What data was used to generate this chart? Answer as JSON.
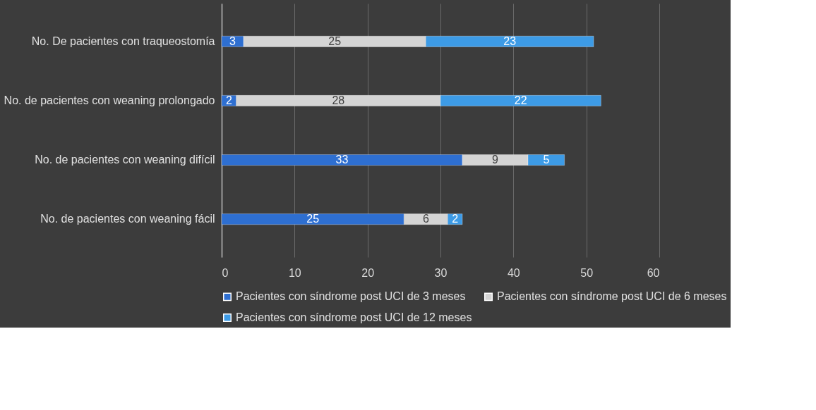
{
  "chart_data": {
    "type": "bar",
    "orientation": "horizontal",
    "stacked": true,
    "categories": [
      "No. De pacientes con traqueostomía",
      "No. de pacientes con weaning prolongado",
      "No. de pacientes con weaning difícil",
      "No. de pacientes con weaning fácil"
    ],
    "series": [
      {
        "name": "Pacientes con síndrome post UCI de 3 meses",
        "color": "#2e6fd1",
        "values": [
          3,
          2,
          33,
          25
        ]
      },
      {
        "name": "Pacientes con síndrome post UCI de 6 meses",
        "color": "#d4d4d4",
        "values": [
          25,
          28,
          9,
          6
        ]
      },
      {
        "name": "Pacientes con síndrome post UCI de 12 meses",
        "color": "#3d9be6",
        "values": [
          23,
          22,
          5,
          2
        ]
      }
    ],
    "xlim": [
      0,
      60
    ],
    "xticks": [
      0,
      10,
      20,
      30,
      40,
      50,
      60
    ],
    "grid": "x",
    "legend": "bottom",
    "data_labels": true
  }
}
